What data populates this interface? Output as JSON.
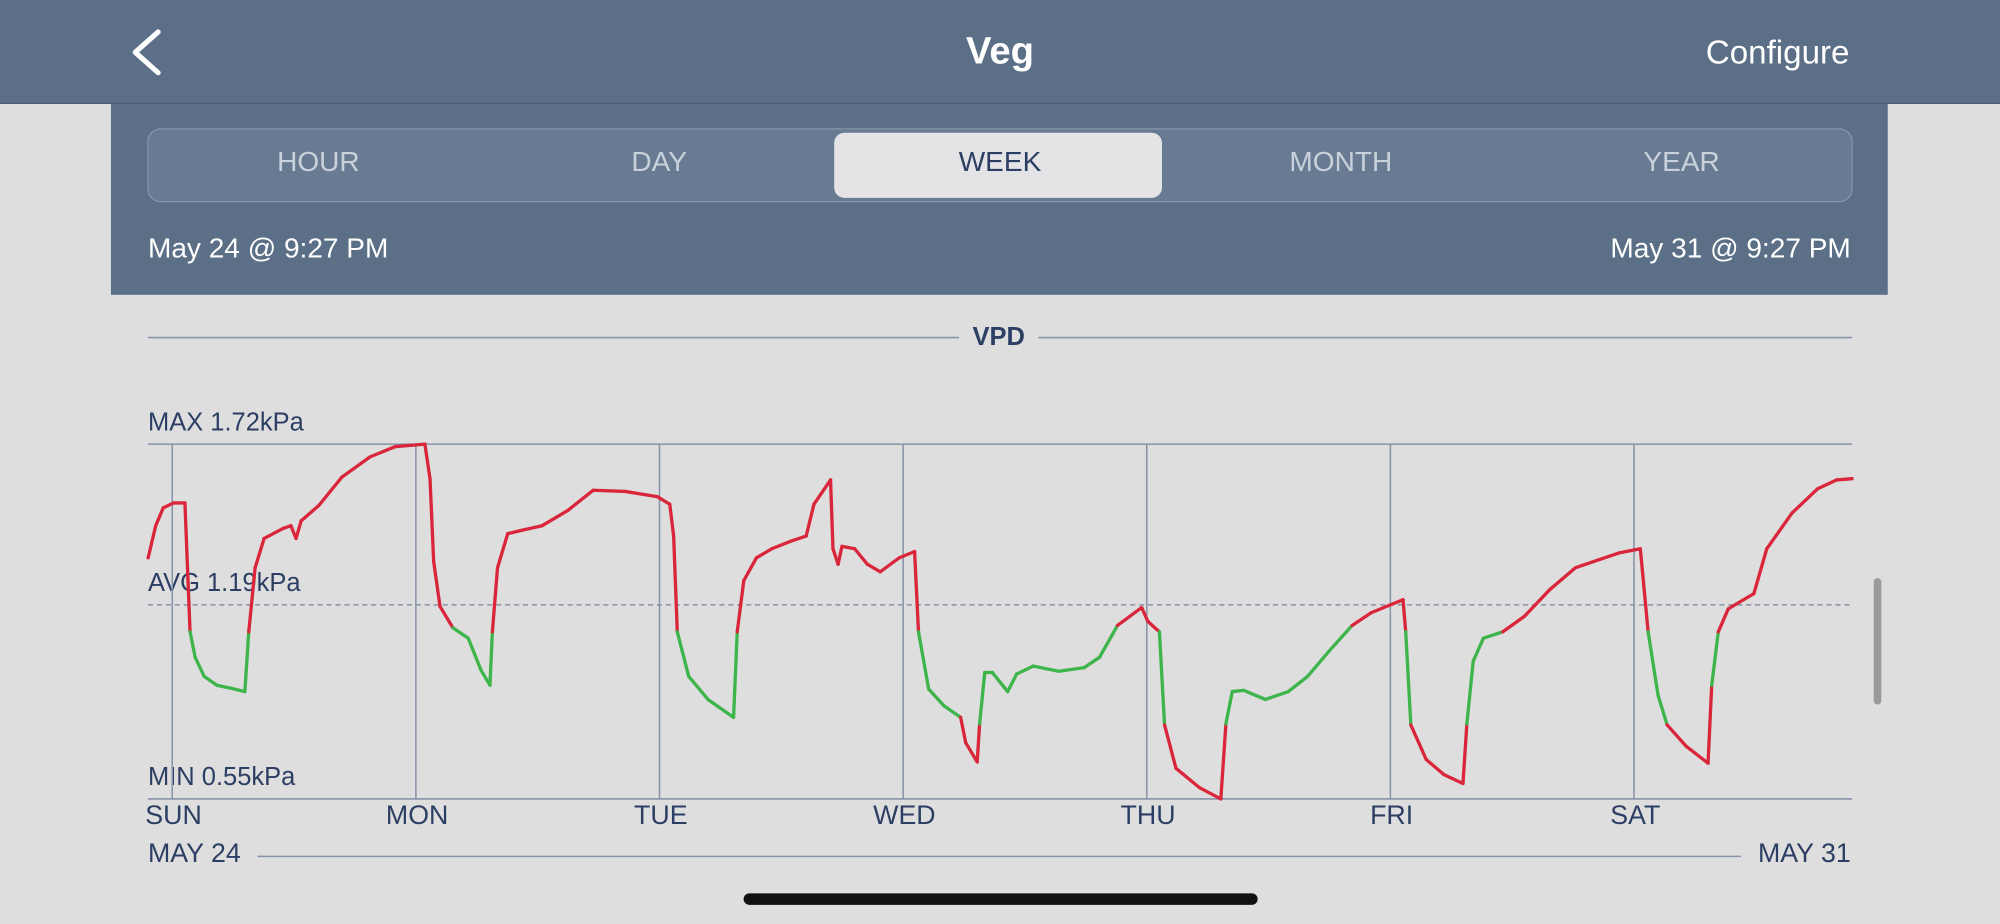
{
  "header": {
    "title": "Veg",
    "action": "Configure"
  },
  "tabs": [
    "HOUR",
    "DAY",
    "WEEK",
    "MONTH",
    "YEAR"
  ],
  "selected_tab": 2,
  "range": {
    "start": "May 24 @ 9:27 PM",
    "end": "May 31 @ 9:27 PM"
  },
  "chart_data": {
    "type": "line",
    "title": "VPD",
    "date_start": "MAY 24",
    "date_end": "MAY 31",
    "color": "#d9263a",
    "in_range_color": "#3db54a",
    "in_range": [
      0.8,
      1.1
    ],
    "grid": true,
    "xlim": [
      -0.105,
      6.895
    ],
    "xticks": [
      {
        "value": 0,
        "label": "SUN"
      },
      {
        "value": 1,
        "label": "MON"
      },
      {
        "value": 2,
        "label": "TUE"
      },
      {
        "value": 3,
        "label": "WED"
      },
      {
        "value": 4,
        "label": "THU"
      },
      {
        "value": 5,
        "label": "FRI"
      },
      {
        "value": 6,
        "label": "SAT"
      }
    ],
    "ylim": [
      0.55,
      1.72
    ],
    "yticks": [
      {
        "value": 1.72,
        "label": "MAX 1.72kPa"
      },
      {
        "value": 1.19,
        "label": "AVG 1.19kPa"
      },
      {
        "value": 0.55,
        "label": "MIN 0.55kPa"
      }
    ],
    "x": [
      -0.099,
      -0.068,
      -0.037,
      0.005,
      0.052,
      0.073,
      0.094,
      0.131,
      0.183,
      0.236,
      0.298,
      0.314,
      0.34,
      0.377,
      0.455,
      0.487,
      0.508,
      0.529,
      0.602,
      0.696,
      0.812,
      0.916,
      0.979,
      1.037,
      1.058,
      1.073,
      1.099,
      1.152,
      1.215,
      1.267,
      1.304,
      1.314,
      1.335,
      1.377,
      1.44,
      1.518,
      1.623,
      1.728,
      1.859,
      1.99,
      2.042,
      2.058,
      2.073,
      2.12,
      2.199,
      2.304,
      2.319,
      2.346,
      2.398,
      2.461,
      2.539,
      2.602,
      2.634,
      2.702,
      2.712,
      2.733,
      2.749,
      2.801,
      2.853,
      2.906,
      2.984,
      3.047,
      3.063,
      3.105,
      3.168,
      3.236,
      3.257,
      3.304,
      3.314,
      3.335,
      3.366,
      3.429,
      3.466,
      3.534,
      3.639,
      3.743,
      3.806,
      3.88,
      3.979,
      4.005,
      4.052,
      4.073,
      4.12,
      4.215,
      4.304,
      4.325,
      4.351,
      4.398,
      4.487,
      4.581,
      4.66,
      4.749,
      4.843,
      4.921,
      5.052,
      5.063,
      5.084,
      5.147,
      5.22,
      5.298,
      5.314,
      5.34,
      5.382,
      5.461,
      5.55,
      5.654,
      5.759,
      5.864,
      5.942,
      6.026,
      6.058,
      6.099,
      6.136,
      6.215,
      6.304,
      6.319,
      6.346,
      6.387,
      6.492,
      6.545,
      6.649,
      6.754,
      6.832,
      6.895
    ],
    "values": [
      1.345,
      1.451,
      1.51,
      1.526,
      1.526,
      1.101,
      1.017,
      0.954,
      0.925,
      0.916,
      0.904,
      1.101,
      1.312,
      1.409,
      1.442,
      1.451,
      1.409,
      1.467,
      1.518,
      1.611,
      1.678,
      1.712,
      1.716,
      1.72,
      1.606,
      1.333,
      1.185,
      1.114,
      1.08,
      0.975,
      0.925,
      1.101,
      1.312,
      1.425,
      1.437,
      1.451,
      1.501,
      1.568,
      1.564,
      1.547,
      1.522,
      1.417,
      1.101,
      0.954,
      0.878,
      0.819,
      1.101,
      1.27,
      1.345,
      1.375,
      1.4,
      1.417,
      1.522,
      1.602,
      1.375,
      1.324,
      1.383,
      1.375,
      1.324,
      1.299,
      1.345,
      1.366,
      1.101,
      0.912,
      0.857,
      0.819,
      0.735,
      0.672,
      0.798,
      0.967,
      0.967,
      0.904,
      0.962,
      0.988,
      0.971,
      0.983,
      1.017,
      1.122,
      1.181,
      1.135,
      1.101,
      0.794,
      0.651,
      0.588,
      0.55,
      0.798,
      0.904,
      0.908,
      0.878,
      0.904,
      0.954,
      1.038,
      1.122,
      1.164,
      1.207,
      1.101,
      0.794,
      0.68,
      0.63,
      0.601,
      0.798,
      1.004,
      1.08,
      1.101,
      1.152,
      1.24,
      1.312,
      1.341,
      1.362,
      1.375,
      1.101,
      0.891,
      0.794,
      0.723,
      0.668,
      0.925,
      1.101,
      1.177,
      1.227,
      1.375,
      1.493,
      1.573,
      1.602,
      1.606
    ]
  }
}
